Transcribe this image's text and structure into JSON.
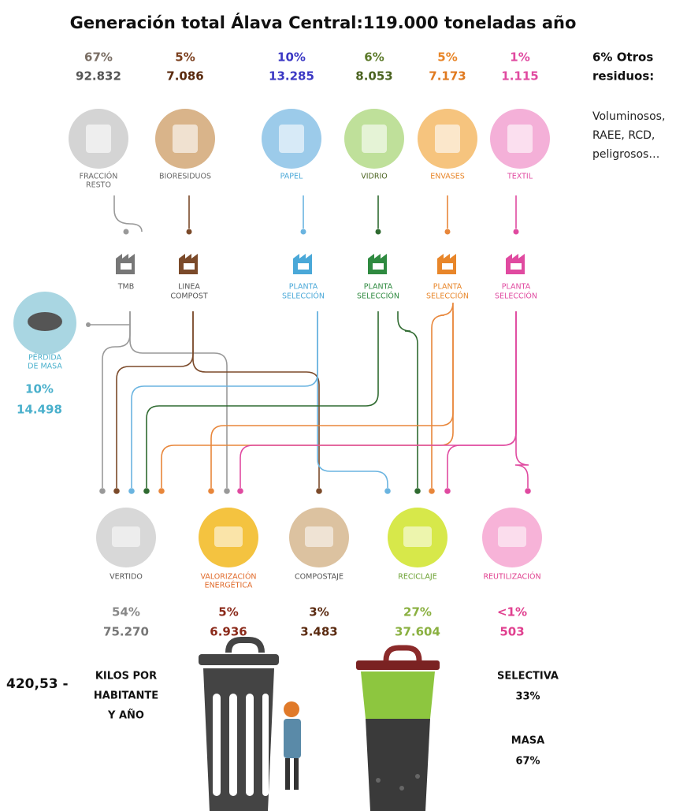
{
  "title": "Generación total Álava Central:119.000 toneladas año",
  "sources": [
    {
      "percent": "67%",
      "amount": "92.832",
      "label": [
        "FRACCIÓN",
        "RESTO"
      ]
    },
    {
      "percent": "5%",
      "amount": "7.086",
      "label": [
        "BIORESIDUOS"
      ]
    },
    {
      "percent": "10%",
      "amount": "13.285",
      "label": [
        "PAPEL"
      ]
    },
    {
      "percent": "6%",
      "amount": "8.053",
      "label": [
        "VIDRIO"
      ]
    },
    {
      "percent": "5%",
      "amount": "7.173",
      "label": [
        "ENVASES"
      ]
    },
    {
      "percent": "1%",
      "amount": "1.115",
      "label": [
        "TEXTIL"
      ]
    }
  ],
  "other": {
    "title": [
      "6% Otros",
      "residuos:"
    ],
    "description": [
      "Voluminosos,",
      "RAEE, RCD,",
      "peligrosos…"
    ]
  },
  "plants": [
    [
      "TMB"
    ],
    [
      "LINEA",
      "COMPOST"
    ],
    [
      "PLANTA",
      "SELECCIÓN"
    ],
    [
      "PLANTA",
      "SELECCIÓN"
    ],
    [
      "PLANTA",
      "SELECCIÓN"
    ],
    [
      "PLANTA",
      "SELECCIÓN"
    ]
  ],
  "loss": {
    "label": [
      "PÉRDIDA",
      "DE MASA"
    ],
    "percent": "10%",
    "amount": "14.498"
  },
  "destinations": [
    {
      "label": [
        "VERTIDO"
      ],
      "percent": "54%",
      "amount": "75.270"
    },
    {
      "label": [
        "VALORIZACIÓN",
        "ENERGÉTICA"
      ],
      "percent": "5%",
      "amount": "6.936"
    },
    {
      "label": [
        "COMPOSTAJE"
      ],
      "percent": "3%",
      "amount": "3.483"
    },
    {
      "label": [
        "RECICLAJE"
      ],
      "percent": "27%",
      "amount": "37.604"
    },
    {
      "label": [
        "REUTILIZACIÓN"
      ],
      "percent": "<1%",
      "amount": "503"
    }
  ],
  "per_capita": {
    "value": "420,53 -",
    "label": [
      "KILOS POR",
      "HABITANTE",
      "Y AÑO"
    ]
  },
  "split": [
    {
      "label": "SELECTIVA",
      "percent": "33%"
    },
    {
      "label": "MASA",
      "percent": "67%"
    }
  ]
}
